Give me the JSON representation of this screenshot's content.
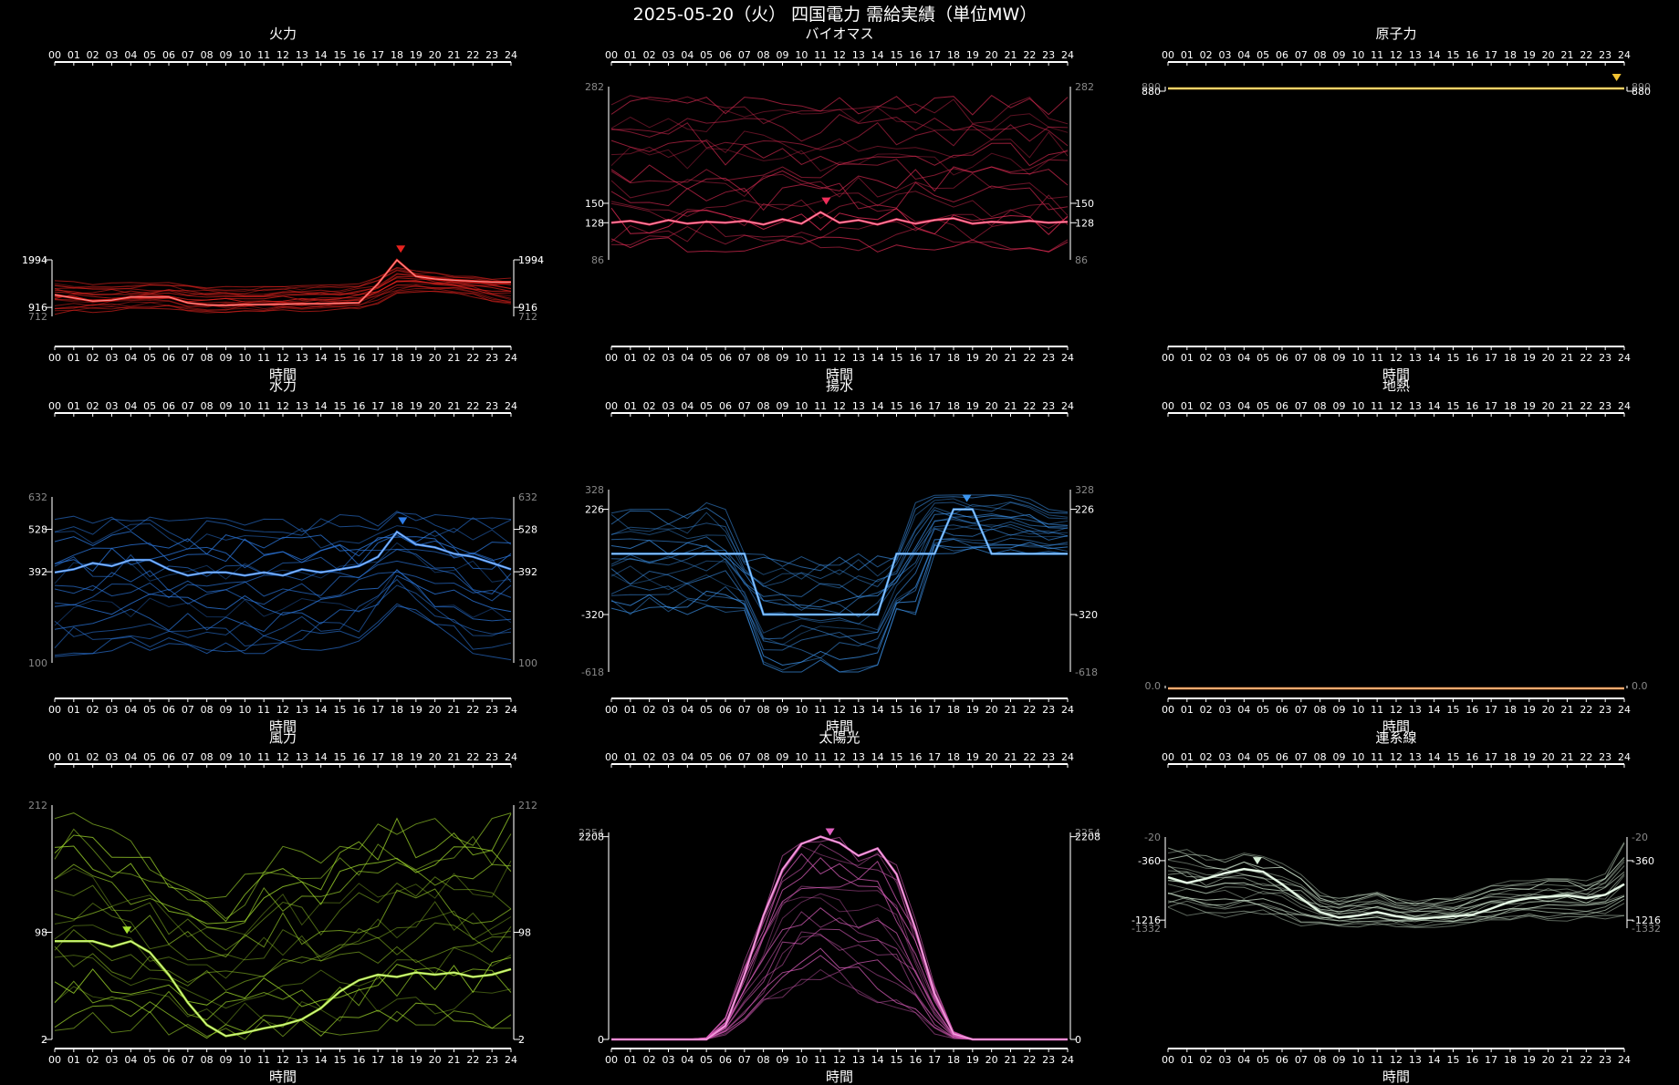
{
  "page": {
    "title": "2025-05-20（火） 四国電力 需給実績（単位MW）"
  },
  "hours": [
    "00",
    "01",
    "02",
    "03",
    "04",
    "05",
    "06",
    "07",
    "08",
    "09",
    "10",
    "11",
    "12",
    "13",
    "14",
    "15",
    "16",
    "17",
    "18",
    "19",
    "20",
    "21",
    "22",
    "23",
    "24"
  ],
  "xlabel": "時間",
  "chart_data": [
    {
      "name": "火力",
      "type": "line",
      "color": "#e8231f",
      "ylim": [
        712,
        1994
      ],
      "ticks": {
        "outer": [
          "1994",
          "712"
        ],
        "inner": [
          "1994",
          "916"
        ]
      },
      "marker_hour": 18.2,
      "values": [
        1200,
        1130,
        1060,
        1080,
        1150,
        1150,
        1150,
        1020,
        970,
        960,
        980,
        980,
        990,
        1000,
        1000,
        1010,
        1020,
        1450,
        1990,
        1620,
        1560,
        1530,
        1510,
        1490,
        1490
      ],
      "band": {
        "low": [
          760,
          780,
          800,
          830,
          860,
          870,
          880,
          800,
          780,
          780,
          800,
          800,
          810,
          820,
          830,
          840,
          880,
          1000,
          1200,
          1250,
          1240,
          1220,
          1150,
          1050,
          960
        ],
        "high": [
          1520,
          1500,
          1480,
          1470,
          1480,
          1500,
          1500,
          1450,
          1400,
          1390,
          1380,
          1390,
          1400,
          1410,
          1420,
          1430,
          1450,
          1600,
          1820,
          1780,
          1700,
          1650,
          1620,
          1600,
          1580
        ]
      }
    },
    {
      "name": "バイオマス",
      "type": "line",
      "color": "#ef2e5a",
      "ylim": [
        86,
        282
      ],
      "ticks": {
        "outer": [
          "282",
          "86"
        ],
        "inner": [
          "150",
          "128"
        ]
      },
      "marker_hour": 11.3,
      "values": [
        128,
        130,
        126,
        131,
        127,
        129,
        128,
        130,
        126,
        132,
        127,
        140,
        128,
        131,
        126,
        132,
        127,
        131,
        133,
        127,
        129,
        128,
        130,
        128,
        129
      ],
      "band": {
        "low": [
          95,
          96,
          95,
          96,
          95,
          96,
          95,
          96,
          95,
          94,
          95,
          96,
          95,
          94,
          95,
          96,
          95,
          96,
          95,
          96,
          95,
          96,
          95,
          95,
          95
        ],
        "high": [
          270,
          272,
          270,
          269,
          271,
          270,
          271,
          270,
          268,
          269,
          270,
          268,
          270,
          269,
          270,
          271,
          270,
          272,
          271,
          270,
          272,
          271,
          270,
          270,
          270
        ]
      }
    },
    {
      "name": "原子力",
      "type": "line",
      "color": "#f1c232",
      "ylim": [
        880,
        890
      ],
      "ticks": {
        "outer": [
          "890"
        ],
        "inner": [
          "880"
        ]
      },
      "marker_hour": 23.6,
      "values": [
        886,
        886,
        886,
        886,
        886,
        886,
        886,
        886,
        886,
        886,
        886,
        886,
        886,
        886,
        886,
        886,
        886,
        886,
        886,
        886,
        886,
        886,
        886,
        886,
        886
      ],
      "band": {
        "low": [
          886,
          886,
          886,
          886,
          886,
          886,
          886,
          886,
          886,
          886,
          886,
          886,
          886,
          886,
          886,
          886,
          886,
          886,
          886,
          886,
          886,
          886,
          886,
          886,
          886
        ],
        "high": [
          886,
          886,
          886,
          886,
          886,
          886,
          886,
          886,
          886,
          886,
          886,
          886,
          886,
          886,
          886,
          886,
          886,
          886,
          886,
          886,
          886,
          886,
          886,
          886,
          886
        ]
      }
    },
    {
      "name": "水力",
      "type": "line",
      "color": "#2e7de8",
      "ylim": [
        100,
        632
      ],
      "ticks": {
        "outer": [
          "632",
          "100"
        ],
        "inner": [
          "528",
          "392"
        ]
      },
      "marker_hour": 18.3,
      "values": [
        390,
        400,
        420,
        410,
        430,
        430,
        400,
        380,
        390,
        390,
        380,
        390,
        380,
        400,
        390,
        400,
        410,
        440,
        520,
        480,
        470,
        450,
        440,
        420,
        400
      ],
      "band": {
        "low": [
          120,
          125,
          130,
          135,
          140,
          140,
          135,
          130,
          130,
          130,
          130,
          130,
          130,
          135,
          140,
          150,
          170,
          220,
          280,
          250,
          200,
          160,
          130,
          120,
          110
        ],
        "high": [
          560,
          570,
          565,
          570,
          575,
          570,
          560,
          560,
          565,
          560,
          570,
          565,
          560,
          570,
          565,
          575,
          570,
          575,
          590,
          580,
          575,
          570,
          575,
          565,
          560
        ]
      }
    },
    {
      "name": "揚水",
      "type": "line",
      "color": "#3d95ee",
      "ylim": [
        -618,
        328
      ],
      "ticks": {
        "outer": [
          "328",
          "-618"
        ],
        "inner": [
          "226",
          "-320"
        ]
      },
      "marker_hour": 18.7,
      "values": [
        -5,
        -5,
        -5,
        -5,
        -5,
        -5,
        -5,
        -5,
        -320,
        -320,
        -320,
        -320,
        -320,
        -320,
        -320,
        -5,
        -5,
        -5,
        226,
        226,
        -5,
        -5,
        -5,
        -5,
        -5
      ],
      "band": {
        "low": [
          -320,
          -320,
          -320,
          -320,
          -320,
          -320,
          -320,
          -320,
          -618,
          -618,
          -618,
          -618,
          -618,
          -618,
          -618,
          -320,
          -320,
          -5,
          -5,
          -5,
          -5,
          -5,
          -5,
          -5,
          -5
        ],
        "high": [
          226,
          226,
          226,
          226,
          226,
          260,
          226,
          -5,
          -5,
          -5,
          -5,
          -5,
          -5,
          -5,
          -5,
          -5,
          260,
          300,
          300,
          300,
          300,
          300,
          280,
          226,
          226
        ]
      }
    },
    {
      "name": "地熱",
      "type": "line",
      "color": "#f08a3a",
      "ylim": [
        0,
        1
      ],
      "ticks": {
        "outer": [
          "0.0"
        ],
        "inner": []
      },
      "marker_hour": null,
      "values": [
        0,
        0,
        0,
        0,
        0,
        0,
        0,
        0,
        0,
        0,
        0,
        0,
        0,
        0,
        0,
        0,
        0,
        0,
        0,
        0,
        0,
        0,
        0,
        0,
        0
      ],
      "band": {
        "low": [
          0,
          0,
          0,
          0,
          0,
          0,
          0,
          0,
          0,
          0,
          0,
          0,
          0,
          0,
          0,
          0,
          0,
          0,
          0,
          0,
          0,
          0,
          0,
          0,
          0
        ],
        "high": [
          0,
          0,
          0,
          0,
          0,
          0,
          0,
          0,
          0,
          0,
          0,
          0,
          0,
          0,
          0,
          0,
          0,
          0,
          0,
          0,
          0,
          0,
          0,
          0,
          0
        ]
      }
    },
    {
      "name": "風力",
      "type": "line",
      "color": "#a6e22e",
      "ylim": [
        2,
        212
      ],
      "ticks": {
        "outer": [
          "212",
          "2"
        ],
        "inner": [
          "98",
          "2"
        ]
      },
      "marker_hour": 3.8,
      "values": [
        90,
        90,
        90,
        85,
        90,
        80,
        60,
        35,
        15,
        5,
        8,
        12,
        15,
        20,
        30,
        45,
        55,
        60,
        58,
        62,
        60,
        62,
        58,
        60,
        65
      ],
      "band": {
        "low": [
          10,
          12,
          10,
          8,
          10,
          8,
          6,
          5,
          3,
          2,
          2,
          3,
          3,
          4,
          5,
          6,
          8,
          10,
          12,
          15,
          15,
          18,
          15,
          12,
          12
        ],
        "high": [
          200,
          205,
          195,
          190,
          180,
          170,
          160,
          150,
          140,
          130,
          150,
          165,
          175,
          170,
          160,
          175,
          185,
          195,
          200,
          195,
          200,
          205,
          195,
          200,
          205
        ]
      }
    },
    {
      "name": "太陽光",
      "type": "line",
      "color": "#e060c0",
      "ylim": [
        0,
        2254
      ],
      "ticks": {
        "outer": [
          "2254"
        ],
        "inner": [
          "2208",
          "0"
        ]
      },
      "marker_hour": 11.5,
      "values": [
        0,
        0,
        0,
        0,
        0,
        0,
        150,
        700,
        1350,
        1850,
        2130,
        2208,
        2140,
        2000,
        2080,
        1800,
        1200,
        500,
        60,
        0,
        0,
        0,
        0,
        0,
        0
      ],
      "band": {
        "low": [
          0,
          0,
          0,
          0,
          0,
          0,
          40,
          150,
          300,
          450,
          600,
          650,
          550,
          500,
          400,
          300,
          180,
          60,
          5,
          0,
          0,
          0,
          0,
          0,
          0
        ],
        "high": [
          0,
          0,
          0,
          0,
          0,
          20,
          250,
          850,
          1500,
          2000,
          2200,
          2250,
          2200,
          2100,
          2150,
          1900,
          1300,
          600,
          90,
          0,
          0,
          0,
          0,
          0,
          0
        ]
      }
    },
    {
      "name": "連系線",
      "type": "line",
      "color": "#d8f0d8",
      "ylim": [
        -1332,
        -20
      ],
      "ticks": {
        "outer": [
          "-20",
          "-1332"
        ],
        "inner": [
          "-360",
          "-1216"
        ]
      },
      "marker_hour": 4.7,
      "values": [
        -600,
        -680,
        -620,
        -540,
        -480,
        -520,
        -700,
        -900,
        -1100,
        -1180,
        -1150,
        -1100,
        -1160,
        -1200,
        -1180,
        -1160,
        -1140,
        -1050,
        -950,
        -900,
        -880,
        -860,
        -900,
        -850,
        -700
      ],
      "band": {
        "low": [
          -1100,
          -1150,
          -1200,
          -1180,
          -1150,
          -1150,
          -1250,
          -1300,
          -1300,
          -1320,
          -1320,
          -1310,
          -1310,
          -1320,
          -1320,
          -1300,
          -1280,
          -1250,
          -1220,
          -1200,
          -1220,
          -1230,
          -1220,
          -1200,
          -1150
        ],
        "high": [
          -150,
          -200,
          -250,
          -300,
          -250,
          -300,
          -400,
          -550,
          -800,
          -900,
          -850,
          -800,
          -900,
          -950,
          -900,
          -900,
          -800,
          -700,
          -650,
          -650,
          -600,
          -600,
          -650,
          -550,
          -80
        ]
      }
    }
  ]
}
